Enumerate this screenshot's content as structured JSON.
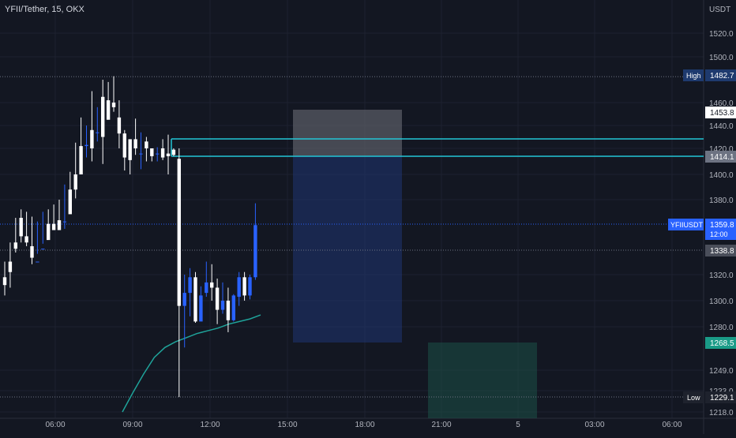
{
  "header": {
    "symbol_title": "YFII/Tether, 15, OKX",
    "unit": "USDT"
  },
  "colors": {
    "background": "#131722",
    "up": "#2962ff",
    "down": "#ffffff",
    "level": "#22c5d6",
    "ma": "#1fa39a",
    "grid": "#9598a1"
  },
  "price_axis": {
    "ticks": [
      "1520.0",
      "1500.0",
      "1460.0",
      "1440.0",
      "1420.0",
      "1400.0",
      "1380.0",
      "1320.0",
      "1300.0",
      "1280.0",
      "1249.0",
      "1233.0",
      "1218.0"
    ]
  },
  "time_axis": {
    "ticks": [
      "06:00",
      "09:00",
      "12:00",
      "15:00",
      "18:00",
      "21:00",
      "5",
      "03:00",
      "06:00"
    ]
  },
  "markers": {
    "high": {
      "label": "High",
      "value": "1482.7"
    },
    "low": {
      "label": "Low",
      "value": "1229.1"
    },
    "level_upper": {
      "value": "1453.8"
    },
    "level_entry": {
      "value": "1414.1"
    },
    "last_price": {
      "symbol": "YFIIUSDT",
      "value": "1359.8",
      "countdown": "12:00"
    },
    "level_mid": {
      "value": "1338.8"
    },
    "level_target": {
      "value": "1268.5"
    }
  },
  "chart_data": {
    "type": "candlestick",
    "interval": "15",
    "exchange": "OKX",
    "unit": "USDT",
    "y_ticks": [
      1218,
      1233,
      1249,
      1280,
      1300,
      1320,
      1380,
      1400,
      1420,
      1440,
      1460,
      1500,
      1520
    ],
    "x_ticks": [
      "06:00",
      "09:00",
      "12:00",
      "15:00",
      "18:00",
      "21:00",
      "5",
      "03:00",
      "06:00"
    ],
    "candles": [
      [
        1318,
        1330,
        1312,
        1304
      ],
      [
        1330,
        1345,
        1322,
        1310
      ],
      [
        1345,
        1365,
        1340,
        1337
      ],
      [
        1365,
        1372,
        1350,
        1345
      ],
      [
        1350,
        1370,
        1345,
        1342
      ],
      [
        1342,
        1366,
        1333,
        1328
      ],
      [
        1330,
        1362,
        1330,
        1336
      ],
      [
        1340,
        1370,
        1340,
        1344
      ],
      [
        1360,
        1372,
        1347,
        1355
      ],
      [
        1360,
        1376,
        1355,
        1356
      ],
      [
        1363,
        1380,
        1355,
        1356
      ],
      [
        1362,
        1392,
        1362,
        1356
      ],
      [
        1388,
        1402,
        1368,
        1380
      ],
      [
        1400,
        1425,
        1388,
        1381
      ],
      [
        1422,
        1447,
        1400,
        1404
      ],
      [
        1422,
        1440,
        1423,
        1413
      ],
      [
        1436,
        1470,
        1420,
        1410
      ],
      [
        1434,
        1456,
        1434,
        1426
      ],
      [
        1465,
        1480,
        1430,
        1408
      ],
      [
        1462,
        1478,
        1445,
        1446
      ],
      [
        1460,
        1483,
        1456,
        1452
      ],
      [
        1447,
        1462,
        1433,
        1420
      ],
      [
        1433,
        1436,
        1413,
        1403
      ],
      [
        1428,
        1426,
        1411,
        1400
      ],
      [
        1428,
        1446,
        1420,
        1415
      ],
      [
        1416,
        1434,
        1416,
        1404
      ],
      [
        1426,
        1430,
        1420,
        1410
      ],
      [
        1420,
        1420,
        1414,
        1410
      ],
      [
        1416,
        1421,
        1416,
        1410
      ],
      [
        1420,
        1428,
        1413,
        1411
      ],
      [
        1416,
        1432,
        1414,
        1400
      ],
      [
        1419,
        1420,
        1415,
        1414
      ],
      [
        1412,
        1420,
        1296,
        1229
      ],
      [
        1296,
        1320,
        1306,
        1265
      ],
      [
        1306,
        1325,
        1318,
        1288
      ],
      [
        1318,
        1322,
        1284,
        1283
      ],
      [
        1284,
        1311,
        1304,
        1286
      ],
      [
        1306,
        1330,
        1314,
        1303
      ],
      [
        1314,
        1328,
        1310,
        1300
      ],
      [
        1310,
        1317,
        1293,
        1282
      ],
      [
        1293,
        1314,
        1300,
        1290
      ],
      [
        1300,
        1310,
        1285,
        1276
      ],
      [
        1285,
        1305,
        1304,
        1284
      ],
      [
        1303,
        1322,
        1318,
        1296
      ],
      [
        1318,
        1322,
        1304,
        1300
      ],
      [
        1304,
        1320,
        1318,
        1301
      ],
      [
        1318,
        1377,
        1359,
        1316
      ]
    ],
    "moving_average": [
      1218,
      1232,
      1246,
      1258,
      1265,
      1269,
      1272,
      1275,
      1277,
      1279,
      1282,
      1284,
      1286,
      1289
    ],
    "position_zones": {
      "loss": {
        "from": 1453.8,
        "to": 1414.1
      },
      "profit": {
        "from": 1414.1,
        "to": 1268.5
      },
      "target": {
        "from": 1268.5,
        "to": 1218
      }
    },
    "levels": [
      1482.7,
      1453.8,
      1414.1,
      1359.8,
      1338.8,
      1268.5,
      1229.1
    ]
  }
}
